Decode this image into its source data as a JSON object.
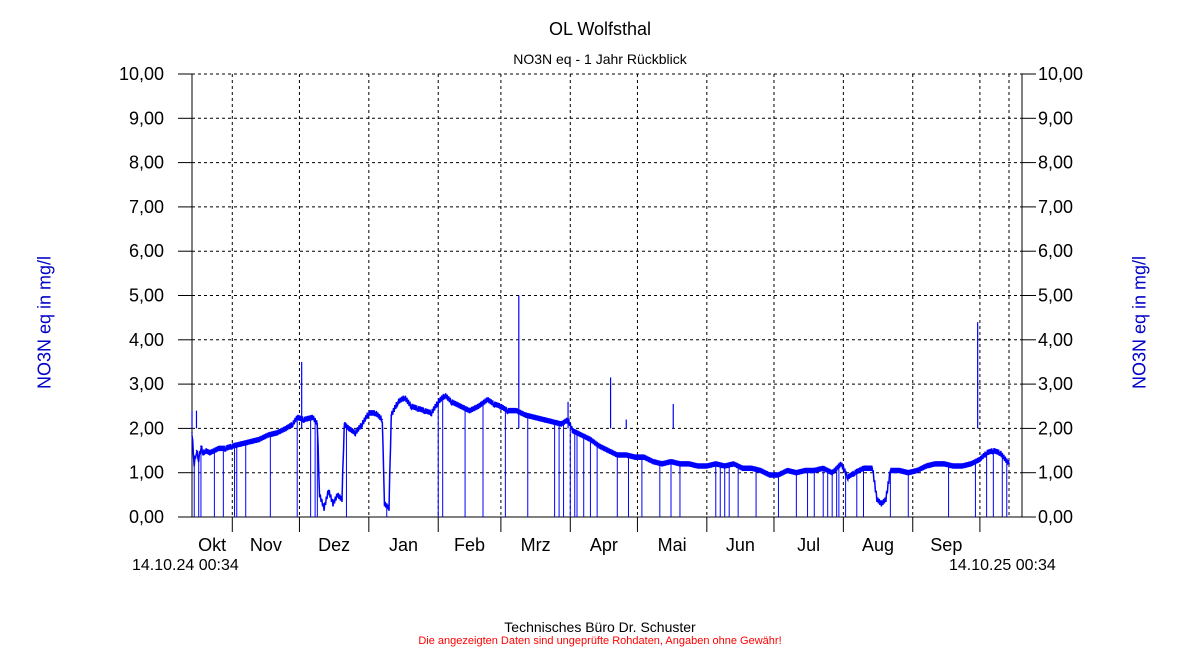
{
  "chart_data": {
    "type": "line",
    "title": "OL Wolfsthal",
    "subtitle": "NO3N eq - 1 Jahr Rückblick",
    "ylabel": "NO3N eq in mg/l",
    "ylabel_right": "NO3N eq in mg/l",
    "xlabel": "",
    "ylim": [
      0,
      10
    ],
    "yticks": [
      "0,00",
      "1,00",
      "2,00",
      "3,00",
      "4,00",
      "5,00",
      "6,00",
      "7,00",
      "8,00",
      "9,00",
      "10,00"
    ],
    "x_unit": "days since 14.10.24 00:34",
    "xlim": [
      0,
      371
    ],
    "month_boundaries": [
      18,
      48,
      79,
      110,
      138,
      169,
      199,
      230,
      260,
      291,
      322,
      352,
      365
    ],
    "month_labels": [
      {
        "label": "Okt",
        "from": 0,
        "to": 18
      },
      {
        "label": "Nov",
        "from": 18,
        "to": 48
      },
      {
        "label": "Dez",
        "from": 48,
        "to": 79
      },
      {
        "label": "Jan",
        "from": 79,
        "to": 110
      },
      {
        "label": "Feb",
        "from": 110,
        "to": 138
      },
      {
        "label": "Mrz",
        "from": 138,
        "to": 169
      },
      {
        "label": "Apr",
        "from": 169,
        "to": 199
      },
      {
        "label": "Mai",
        "from": 199,
        "to": 230
      },
      {
        "label": "Jun",
        "from": 230,
        "to": 260
      },
      {
        "label": "Jul",
        "from": 260,
        "to": 291
      },
      {
        "label": "Aug",
        "from": 291,
        "to": 322
      },
      {
        "label": "Sep",
        "from": 322,
        "to": 352
      }
    ],
    "start_label": "14.10.24 00:34",
    "end_label": "14.10.25 00:34",
    "grid": true,
    "series": [
      {
        "name": "NO3N eq",
        "color": "#0000ff",
        "points": [
          [
            0,
            1.9
          ],
          [
            1,
            1.2
          ],
          [
            2,
            1.5
          ],
          [
            3,
            1.3
          ],
          [
            4,
            1.6
          ],
          [
            5,
            1.45
          ],
          [
            6,
            1.5
          ],
          [
            8,
            1.45
          ],
          [
            10,
            1.5
          ],
          [
            12,
            1.55
          ],
          [
            15,
            1.55
          ],
          [
            18,
            1.6
          ],
          [
            22,
            1.65
          ],
          [
            26,
            1.7
          ],
          [
            30,
            1.75
          ],
          [
            34,
            1.85
          ],
          [
            38,
            1.9
          ],
          [
            42,
            2.0
          ],
          [
            45,
            2.1
          ],
          [
            47,
            2.25
          ],
          [
            50,
            2.2
          ],
          [
            54,
            2.25
          ],
          [
            56,
            2.1
          ],
          [
            57,
            0.5
          ],
          [
            59,
            0.2
          ],
          [
            61,
            0.6
          ],
          [
            63,
            0.3
          ],
          [
            65,
            0.5
          ],
          [
            67,
            0.4
          ],
          [
            68,
            2.1
          ],
          [
            70,
            2.0
          ],
          [
            73,
            1.9
          ],
          [
            76,
            2.1
          ],
          [
            79,
            2.35
          ],
          [
            82,
            2.35
          ],
          [
            85,
            2.2
          ],
          [
            86,
            0.3
          ],
          [
            88,
            0.2
          ],
          [
            89,
            2.3
          ],
          [
            92,
            2.6
          ],
          [
            95,
            2.7
          ],
          [
            98,
            2.5
          ],
          [
            101,
            2.45
          ],
          [
            104,
            2.4
          ],
          [
            107,
            2.35
          ],
          [
            110,
            2.6
          ],
          [
            113,
            2.75
          ],
          [
            116,
            2.6
          ],
          [
            120,
            2.5
          ],
          [
            124,
            2.4
          ],
          [
            128,
            2.5
          ],
          [
            132,
            2.65
          ],
          [
            135,
            2.55
          ],
          [
            138,
            2.5
          ],
          [
            141,
            2.4
          ],
          [
            145,
            2.4
          ],
          [
            149,
            2.3
          ],
          [
            153,
            2.25
          ],
          [
            157,
            2.2
          ],
          [
            161,
            2.15
          ],
          [
            165,
            2.1
          ],
          [
            168,
            2.2
          ],
          [
            170,
            1.95
          ],
          [
            174,
            1.85
          ],
          [
            178,
            1.75
          ],
          [
            182,
            1.6
          ],
          [
            186,
            1.5
          ],
          [
            190,
            1.4
          ],
          [
            194,
            1.4
          ],
          [
            198,
            1.35
          ],
          [
            202,
            1.35
          ],
          [
            206,
            1.25
          ],
          [
            210,
            1.2
          ],
          [
            214,
            1.25
          ],
          [
            218,
            1.2
          ],
          [
            222,
            1.2
          ],
          [
            226,
            1.15
          ],
          [
            230,
            1.15
          ],
          [
            234,
            1.2
          ],
          [
            238,
            1.15
          ],
          [
            242,
            1.2
          ],
          [
            246,
            1.1
          ],
          [
            250,
            1.1
          ],
          [
            254,
            1.05
          ],
          [
            258,
            0.95
          ],
          [
            262,
            0.95
          ],
          [
            266,
            1.05
          ],
          [
            270,
            1.0
          ],
          [
            274,
            1.05
          ],
          [
            278,
            1.05
          ],
          [
            282,
            1.1
          ],
          [
            286,
            1.0
          ],
          [
            290,
            1.2
          ],
          [
            293,
            0.9
          ],
          [
            296,
            1.0
          ],
          [
            300,
            1.1
          ],
          [
            304,
            1.1
          ],
          [
            306,
            0.4
          ],
          [
            308,
            0.3
          ],
          [
            310,
            0.4
          ],
          [
            312,
            1.05
          ],
          [
            316,
            1.05
          ],
          [
            320,
            1.0
          ],
          [
            324,
            1.05
          ],
          [
            328,
            1.15
          ],
          [
            332,
            1.2
          ],
          [
            336,
            1.2
          ],
          [
            340,
            1.15
          ],
          [
            344,
            1.15
          ],
          [
            348,
            1.2
          ],
          [
            352,
            1.3
          ],
          [
            355,
            1.45
          ],
          [
            358,
            1.5
          ],
          [
            361,
            1.45
          ],
          [
            365,
            1.2
          ]
        ],
        "spikes": [
          [
            0,
            2.4
          ],
          [
            2,
            2.4
          ],
          [
            49,
            3.5
          ],
          [
            146,
            5.0
          ],
          [
            168,
            2.6
          ],
          [
            187,
            3.15
          ],
          [
            194,
            2.2
          ],
          [
            215,
            2.55
          ],
          [
            287,
            1.8
          ],
          [
            288,
            1.75
          ],
          [
            296,
            1.75
          ],
          [
            351,
            4.4
          ]
        ],
        "dropouts": [
          1,
          3,
          4,
          10,
          14,
          19,
          20,
          24,
          35,
          47,
          53,
          55,
          56,
          69,
          87,
          110,
          112,
          122,
          130,
          140,
          150,
          162,
          164,
          166,
          169,
          171,
          172,
          175,
          178,
          181,
          190,
          195,
          201,
          209,
          214,
          218,
          234,
          236,
          238,
          240,
          244,
          252,
          262,
          270,
          275,
          278,
          282,
          284,
          286,
          288,
          289,
          292,
          297,
          300,
          312,
          320,
          338,
          350,
          355,
          358,
          362,
          364
        ]
      }
    ]
  },
  "footer": "Technisches Büro Dr. Schuster",
  "disclaimer": "Die angezeigten Daten sind ungeprüfte Rohdaten, Angaben ohne Gewähr!"
}
